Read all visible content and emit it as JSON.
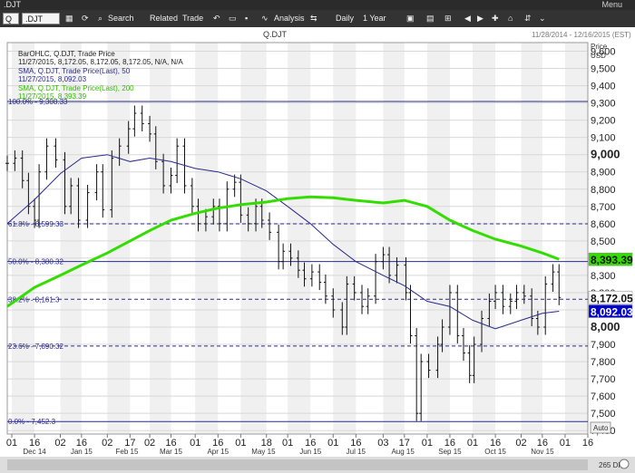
{
  "window": {
    "title": ".DJT",
    "menu_label": "Menu"
  },
  "toolbar": {
    "symbol_select": "Q",
    "symbol_input": ".DJT",
    "search": "Search",
    "related": "Related",
    "trade": "Trade",
    "analysis": "Analysis",
    "interval": "Daily",
    "range": "1 Year"
  },
  "header": {
    "symbol": "Q.DJT",
    "date_range": "11/28/2014 - 12/16/2015 (EST)"
  },
  "price_axis": {
    "title_line1": "Price",
    "title_line2": "USD",
    "auto_label": "Auto"
  },
  "legend": {
    "bar": {
      "line1": "BarOHLC, Q.DJT, Trade Price",
      "line2": "11/27/2015, 8,172.05, 8,172.05, 8,172.05, N/A, N/A"
    },
    "sma50": {
      "line1": "SMA, Q.DJT, Trade Price(Last), 50",
      "line2": "11/27/2015, 8,092.03"
    },
    "sma200": {
      "line1": "SMA, Q.DJT, Trade Price(Last), 200",
      "line2": "11/27/2015, 8,393.39"
    }
  },
  "footer": {
    "label": "265 DP"
  },
  "chart_data": {
    "type": "line",
    "title": "Q.DJT",
    "subtitle": "11/28/2014 - 12/16/2015 (EST)",
    "ylabel": "Price USD",
    "ylim": [
      7380,
      9650
    ],
    "yticks": [
      {
        "v": 9600,
        "label": "9,600"
      },
      {
        "v": 9500,
        "label": "9,500"
      },
      {
        "v": 9400,
        "label": "9,400"
      },
      {
        "v": 9300,
        "label": "9,300"
      },
      {
        "v": 9200,
        "label": "9,200"
      },
      {
        "v": 9100,
        "label": "9,100"
      },
      {
        "v": 9000,
        "label": "9,000"
      },
      {
        "v": 8900,
        "label": "8,900"
      },
      {
        "v": 8800,
        "label": "8,800"
      },
      {
        "v": 8700,
        "label": "8,700"
      },
      {
        "v": 8600,
        "label": "8,600"
      },
      {
        "v": 8500,
        "label": "8,500"
      },
      {
        "v": 8400,
        "label": "8,400"
      },
      {
        "v": 8300,
        "label": "8,300"
      },
      {
        "v": 8200,
        "label": "8,200"
      },
      {
        "v": 8100,
        "label": "8,100"
      },
      {
        "v": 8000,
        "label": "8,000"
      },
      {
        "v": 7900,
        "label": "7,900"
      },
      {
        "v": 7800,
        "label": "7,800"
      },
      {
        "v": 7700,
        "label": "7,700"
      },
      {
        "v": 7600,
        "label": "7,600"
      },
      {
        "v": 7500,
        "label": "7,500"
      },
      {
        "v": 7400,
        "label": "7,400"
      }
    ],
    "major_yticks": [
      9000,
      8000
    ],
    "xlim": [
      "2014-11-28",
      "2015-12-16"
    ],
    "xticks": [
      {
        "date": "2014-12-01",
        "label": "01"
      },
      {
        "date": "2014-12-16",
        "label": "16"
      },
      {
        "date": "2015-01-02",
        "label": "02"
      },
      {
        "date": "2015-01-16",
        "label": "16"
      },
      {
        "date": "2015-02-02",
        "label": "02"
      },
      {
        "date": "2015-02-17",
        "label": "17"
      },
      {
        "date": "2015-03-02",
        "label": "02"
      },
      {
        "date": "2015-03-16",
        "label": "16"
      },
      {
        "date": "2015-04-01",
        "label": "01"
      },
      {
        "date": "2015-04-16",
        "label": "16"
      },
      {
        "date": "2015-05-01",
        "label": "01"
      },
      {
        "date": "2015-05-18",
        "label": "18"
      },
      {
        "date": "2015-06-01",
        "label": "01"
      },
      {
        "date": "2015-06-16",
        "label": "16"
      },
      {
        "date": "2015-07-01",
        "label": "01"
      },
      {
        "date": "2015-07-16",
        "label": "16"
      },
      {
        "date": "2015-08-03",
        "label": "03"
      },
      {
        "date": "2015-08-17",
        "label": "17"
      },
      {
        "date": "2015-09-01",
        "label": "01"
      },
      {
        "date": "2015-09-16",
        "label": "16"
      },
      {
        "date": "2015-10-01",
        "label": "01"
      },
      {
        "date": "2015-10-16",
        "label": "16"
      },
      {
        "date": "2015-11-02",
        "label": "02"
      },
      {
        "date": "2015-11-16",
        "label": "16"
      },
      {
        "date": "2015-12-01",
        "label": "01"
      },
      {
        "date": "2015-12-16",
        "label": "16"
      }
    ],
    "month_labels": [
      {
        "date": "2014-12-16",
        "label": "Dec 14"
      },
      {
        "date": "2015-01-16",
        "label": "Jan 15"
      },
      {
        "date": "2015-02-15",
        "label": "Feb 15"
      },
      {
        "date": "2015-03-16",
        "label": "Mar 15"
      },
      {
        "date": "2015-04-16",
        "label": "Apr 15"
      },
      {
        "date": "2015-05-16",
        "label": "May 15"
      },
      {
        "date": "2015-06-16",
        "label": "Jun 15"
      },
      {
        "date": "2015-07-16",
        "label": "Jul 15"
      },
      {
        "date": "2015-08-16",
        "label": "Aug 15"
      },
      {
        "date": "2015-09-16",
        "label": "Sep 15"
      },
      {
        "date": "2015-10-16",
        "label": "Oct 15"
      },
      {
        "date": "2015-11-16",
        "label": "Nov 15"
      }
    ],
    "fib_levels": [
      {
        "label": "0.0% - 7,452.3",
        "value": 7452.3,
        "style": "solid"
      },
      {
        "label": "23.6% - 7,890.32",
        "value": 7890.32,
        "style": "dashed"
      },
      {
        "label": "38.2% - 8,161.3",
        "value": 8161.3,
        "style": "dashed"
      },
      {
        "label": "50.0% - 8,380.32",
        "value": 8380.32,
        "style": "solid"
      },
      {
        "label": "61.8% - 8,599.33",
        "value": 8599.33,
        "style": "dashed"
      },
      {
        "label": "100.0% - 9,308.33",
        "value": 9308.33,
        "style": "solid"
      }
    ],
    "series": [
      {
        "name": "SMA, Q.DJT, Trade Price(Last), 200",
        "color": "#33dd00",
        "points": [
          [
            "2014-11-28",
            8120
          ],
          [
            "2014-12-16",
            8230
          ],
          [
            "2015-01-02",
            8300
          ],
          [
            "2015-01-16",
            8360
          ],
          [
            "2015-02-02",
            8430
          ],
          [
            "2015-02-17",
            8500
          ],
          [
            "2015-03-02",
            8560
          ],
          [
            "2015-03-16",
            8620
          ],
          [
            "2015-04-01",
            8660
          ],
          [
            "2015-04-16",
            8690
          ],
          [
            "2015-05-01",
            8710
          ],
          [
            "2015-05-18",
            8725
          ],
          [
            "2015-06-01",
            8745
          ],
          [
            "2015-06-16",
            8755
          ],
          [
            "2015-07-01",
            8750
          ],
          [
            "2015-07-16",
            8735
          ],
          [
            "2015-08-03",
            8720
          ],
          [
            "2015-08-17",
            8735
          ],
          [
            "2015-09-01",
            8700
          ],
          [
            "2015-09-16",
            8620
          ],
          [
            "2015-10-01",
            8560
          ],
          [
            "2015-10-16",
            8510
          ],
          [
            "2015-11-02",
            8470
          ],
          [
            "2015-11-16",
            8430
          ],
          [
            "2015-11-27",
            8393.39
          ]
        ]
      },
      {
        "name": "SMA, Q.DJT, Trade Price(Last), 50",
        "color": "#2a2a8a",
        "points": [
          [
            "2014-11-28",
            8600
          ],
          [
            "2014-12-16",
            8740
          ],
          [
            "2015-01-02",
            8890
          ],
          [
            "2015-01-16",
            8980
          ],
          [
            "2015-02-02",
            9000
          ],
          [
            "2015-02-17",
            8960
          ],
          [
            "2015-03-02",
            8980
          ],
          [
            "2015-03-16",
            8960
          ],
          [
            "2015-04-01",
            8920
          ],
          [
            "2015-04-16",
            8900
          ],
          [
            "2015-05-01",
            8860
          ],
          [
            "2015-05-18",
            8790
          ],
          [
            "2015-06-01",
            8700
          ],
          [
            "2015-06-16",
            8600
          ],
          [
            "2015-07-01",
            8480
          ],
          [
            "2015-07-16",
            8380
          ],
          [
            "2015-08-03",
            8300
          ],
          [
            "2015-08-17",
            8240
          ],
          [
            "2015-09-01",
            8150
          ],
          [
            "2015-09-16",
            8120
          ],
          [
            "2015-10-01",
            8040
          ],
          [
            "2015-10-16",
            7990
          ],
          [
            "2015-11-02",
            8040
          ],
          [
            "2015-11-16",
            8080
          ],
          [
            "2015-11-27",
            8092.03
          ]
        ]
      }
    ],
    "ohlc_close": [
      [
        "2014-11-28",
        8950
      ],
      [
        "2014-12-03",
        8980
      ],
      [
        "2014-12-08",
        8850
      ],
      [
        "2014-12-12",
        8700
      ],
      [
        "2014-12-16",
        8620
      ],
      [
        "2014-12-19",
        8900
      ],
      [
        "2014-12-24",
        9050
      ],
      [
        "2014-12-30",
        8970
      ],
      [
        "2015-01-05",
        8700
      ],
      [
        "2015-01-09",
        8820
      ],
      [
        "2015-01-14",
        8620
      ],
      [
        "2015-01-20",
        8780
      ],
      [
        "2015-01-26",
        8900
      ],
      [
        "2015-01-30",
        8680
      ],
      [
        "2015-02-05",
        8980
      ],
      [
        "2015-02-10",
        9050
      ],
      [
        "2015-02-16",
        9150
      ],
      [
        "2015-02-20",
        9240
      ],
      [
        "2015-02-25",
        9180
      ],
      [
        "2015-03-02",
        9120
      ],
      [
        "2015-03-06",
        8960
      ],
      [
        "2015-03-11",
        8820
      ],
      [
        "2015-03-16",
        8880
      ],
      [
        "2015-03-20",
        9050
      ],
      [
        "2015-03-25",
        8820
      ],
      [
        "2015-03-30",
        8700
      ],
      [
        "2015-04-03",
        8600
      ],
      [
        "2015-04-08",
        8640
      ],
      [
        "2015-04-13",
        8700
      ],
      [
        "2015-04-17",
        8600
      ],
      [
        "2015-04-22",
        8800
      ],
      [
        "2015-04-27",
        8840
      ],
      [
        "2015-05-01",
        8650
      ],
      [
        "2015-05-06",
        8600
      ],
      [
        "2015-05-11",
        8700
      ],
      [
        "2015-05-15",
        8620
      ],
      [
        "2015-05-20",
        8550
      ],
      [
        "2015-05-26",
        8380
      ],
      [
        "2015-05-29",
        8440
      ],
      [
        "2015-06-03",
        8400
      ],
      [
        "2015-06-08",
        8330
      ],
      [
        "2015-06-12",
        8280
      ],
      [
        "2015-06-17",
        8320
      ],
      [
        "2015-06-22",
        8260
      ],
      [
        "2015-06-26",
        8180
      ],
      [
        "2015-07-01",
        8100
      ],
      [
        "2015-07-07",
        8000
      ],
      [
        "2015-07-10",
        8250
      ],
      [
        "2015-07-15",
        8200
      ],
      [
        "2015-07-20",
        8120
      ],
      [
        "2015-07-24",
        8180
      ],
      [
        "2015-07-29",
        8380
      ],
      [
        "2015-08-03",
        8420
      ],
      [
        "2015-08-07",
        8300
      ],
      [
        "2015-08-12",
        8360
      ],
      [
        "2015-08-18",
        8200
      ],
      [
        "2015-08-21",
        7950
      ],
      [
        "2015-08-25",
        7500
      ],
      [
        "2015-08-28",
        7800
      ],
      [
        "2015-09-02",
        7750
      ],
      [
        "2015-09-08",
        7900
      ],
      [
        "2015-09-11",
        8000
      ],
      [
        "2015-09-16",
        8200
      ],
      [
        "2015-09-21",
        7950
      ],
      [
        "2015-09-25",
        7850
      ],
      [
        "2015-09-29",
        7720
      ],
      [
        "2015-10-02",
        7900
      ],
      [
        "2015-10-07",
        8050
      ],
      [
        "2015-10-12",
        8150
      ],
      [
        "2015-10-16",
        8200
      ],
      [
        "2015-10-21",
        8120
      ],
      [
        "2015-10-26",
        8150
      ],
      [
        "2015-10-30",
        8200
      ],
      [
        "2015-11-04",
        8180
      ],
      [
        "2015-11-09",
        8050
      ],
      [
        "2015-11-13",
        8000
      ],
      [
        "2015-11-18",
        8250
      ],
      [
        "2015-11-23",
        8320
      ],
      [
        "2015-11-27",
        8172.05
      ]
    ],
    "last_price_labels": [
      {
        "label": "8,393.39",
        "value": 8393.39,
        "bg": "#33dd00"
      },
      {
        "label": "8,172.05",
        "value": 8172.05,
        "bg": "#ffffff"
      },
      {
        "label": "8,092.03",
        "value": 8092.03,
        "bg": "#0000cc"
      }
    ],
    "grid": true
  }
}
